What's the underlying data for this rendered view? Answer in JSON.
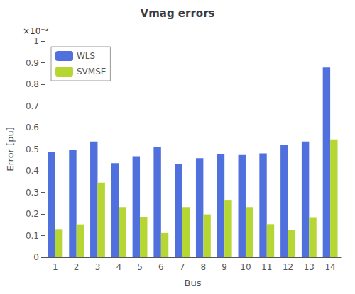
{
  "chart_data": {
    "type": "bar",
    "title": "Vmag errors",
    "xlabel": "Bus",
    "ylabel": "Error [pu]",
    "annotations": [
      "×10⁻³"
    ],
    "categories": [
      1,
      2,
      3,
      4,
      5,
      6,
      7,
      8,
      9,
      10,
      11,
      12,
      13,
      14
    ],
    "series": [
      {
        "name": "WLS",
        "values": [
          0.488,
          0.495,
          0.535,
          0.435,
          0.467,
          0.508,
          0.433,
          0.458,
          0.478,
          0.473,
          0.48,
          0.518,
          0.535,
          0.878
        ]
      },
      {
        "name": "SVMSE",
        "values": [
          0.13,
          0.152,
          0.345,
          0.232,
          0.185,
          0.112,
          0.232,
          0.198,
          0.262,
          0.232,
          0.153,
          0.127,
          0.182,
          0.545
        ]
      }
    ],
    "ylim": [
      0,
      1.0
    ],
    "yticks": [
      0,
      0.1,
      0.2,
      0.3,
      0.4,
      0.5,
      0.6,
      0.7,
      0.8,
      0.9,
      1
    ],
    "grid": false,
    "legend": "upper left"
  }
}
